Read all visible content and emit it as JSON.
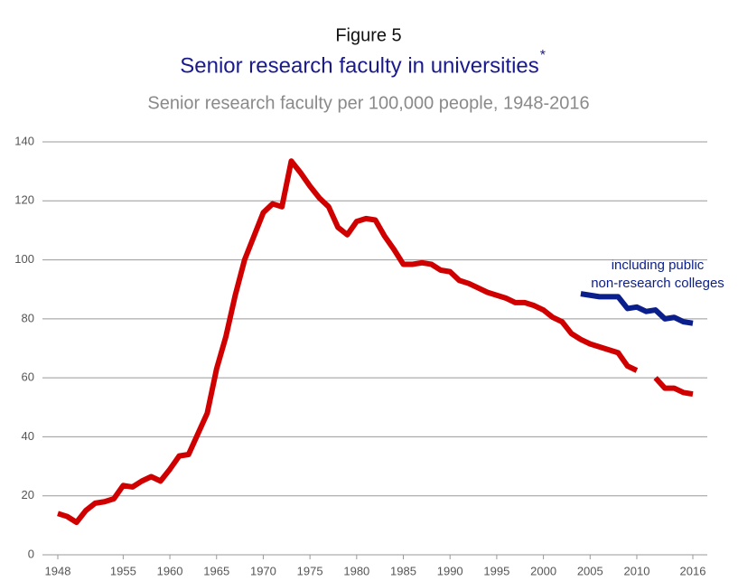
{
  "chart_data": {
    "type": "line",
    "figure_label": "Figure 5",
    "title": "Senior research faculty in universities",
    "title_mark": "*",
    "subtitle": "Senior research faculty per 100,000 people, 1948-2016",
    "annotation": [
      "including public",
      "non-research colleges"
    ],
    "x": [
      1948,
      1949,
      1950,
      1951,
      1952,
      1953,
      1954,
      1955,
      1956,
      1957,
      1958,
      1959,
      1960,
      1961,
      1962,
      1963,
      1964,
      1965,
      1966,
      1967,
      1968,
      1969,
      1970,
      1971,
      1972,
      1973,
      1974,
      1975,
      1976,
      1977,
      1978,
      1979,
      1980,
      1981,
      1982,
      1983,
      1984,
      1985,
      1986,
      1987,
      1988,
      1989,
      1990,
      1991,
      1992,
      1993,
      1994,
      1995,
      1996,
      1997,
      1998,
      1999,
      2000,
      2001,
      2002,
      2003,
      2004,
      2005,
      2006,
      2007,
      2008,
      2009,
      2010,
      2011,
      2012,
      2013,
      2014,
      2015,
      2016
    ],
    "series": [
      {
        "name": "universities",
        "color": "#d00000",
        "values": [
          14,
          13,
          11,
          15,
          17.5,
          18,
          19,
          23.5,
          23,
          25,
          26.5,
          25,
          29,
          33.5,
          34,
          41,
          48,
          63,
          74,
          88,
          100,
          108,
          116,
          119,
          118,
          133.5,
          129.5,
          125,
          121,
          118,
          111,
          108.5,
          113,
          114,
          113.5,
          108,
          103.5,
          98.5,
          98.5,
          99,
          98.5,
          96.5,
          96,
          93,
          92,
          90.5,
          89,
          88,
          87,
          85.5,
          85.5,
          84.5,
          83,
          80.5,
          79,
          75,
          73,
          71.5,
          70.5,
          69.5,
          68.5,
          64,
          62.5,
          null,
          60,
          56.5,
          56.5,
          55,
          54.5
        ]
      },
      {
        "name": "including public non-research colleges",
        "color": "#0a1e8c",
        "values": [
          null,
          null,
          null,
          null,
          null,
          null,
          null,
          null,
          null,
          null,
          null,
          null,
          null,
          null,
          null,
          null,
          null,
          null,
          null,
          null,
          null,
          null,
          null,
          null,
          null,
          null,
          null,
          null,
          null,
          null,
          null,
          null,
          null,
          null,
          null,
          null,
          null,
          null,
          null,
          null,
          null,
          null,
          null,
          null,
          null,
          null,
          null,
          null,
          null,
          null,
          null,
          null,
          null,
          null,
          null,
          null,
          88.5,
          88,
          87.5,
          87.5,
          87.5,
          83.5,
          84,
          82.5,
          83,
          80,
          80.5,
          79,
          78.5
        ]
      }
    ],
    "xlim": [
      1948,
      2016
    ],
    "xticks": [
      1948,
      1955,
      1960,
      1965,
      1970,
      1975,
      1980,
      1985,
      1990,
      1995,
      2000,
      2005,
      2010,
      2016
    ],
    "ylim": [
      0,
      140
    ],
    "yticks": [
      0,
      20,
      40,
      60,
      80,
      100,
      120,
      140
    ],
    "grid": true
  }
}
